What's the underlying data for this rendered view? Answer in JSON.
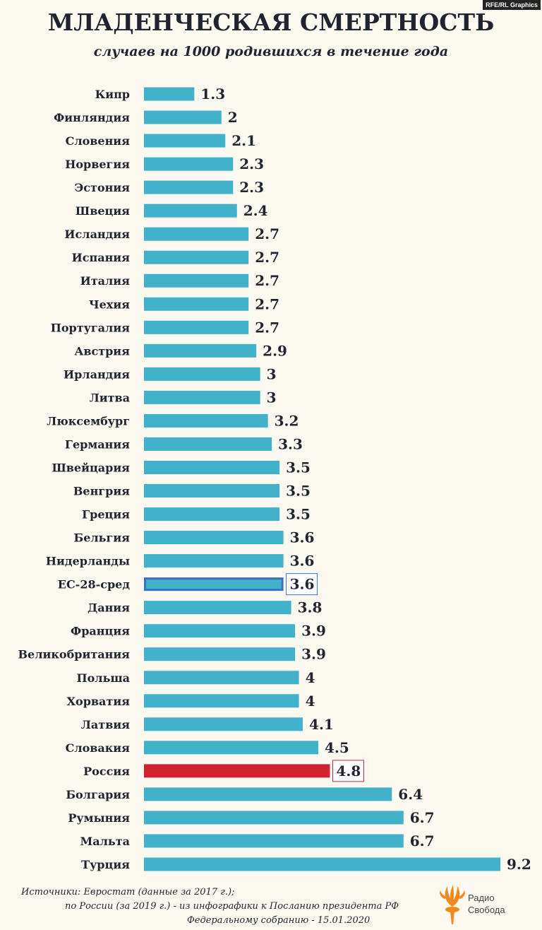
{
  "credit": "RFE/RL Graphics",
  "title": "МЛАДЕНЧЕСКАЯ СМЕРТНОСТЬ",
  "subtitle": "случаев на 1000 родившихся в течение года",
  "colors": {
    "bar": "#41b2c9",
    "eu_average": "#3a70c8",
    "russia": "#d12231",
    "text": "#1f2430",
    "background": "#fcf9f1"
  },
  "chart_data": {
    "type": "bar",
    "orientation": "horizontal",
    "title": "МЛАДЕНЧЕСКАЯ СМЕРТНОСТЬ",
    "subtitle": "случаев на 1000 родившихся в течение года",
    "categories": [
      "Кипр",
      "Финляндия",
      "Словения",
      "Норвегия",
      "Эстония",
      "Швеция",
      "Исландия",
      "Испания",
      "Италия",
      "Чехия",
      "Португалия",
      "Австрия",
      "Ирландия",
      "Литва",
      "Люксембург",
      "Германия",
      "Швейцария",
      "Венгрия",
      "Греция",
      "Бельгия",
      "Нидерланды",
      "ЕС-28-сред",
      "Дания",
      "Франция",
      "Великобритания",
      "Польша",
      "Хорватия",
      "Латвия",
      "Словакия",
      "Россия",
      "Болгария",
      "Румыния",
      "Мальта",
      "Турция"
    ],
    "values": [
      1.3,
      2,
      2.1,
      2.3,
      2.3,
      2.4,
      2.7,
      2.7,
      2.7,
      2.7,
      2.7,
      2.9,
      3,
      3,
      3.2,
      3.3,
      3.5,
      3.5,
      3.5,
      3.6,
      3.6,
      3.6,
      3.8,
      3.9,
      3.9,
      4,
      4,
      4.1,
      4.5,
      4.8,
      6.4,
      6.7,
      6.7,
      9.2
    ],
    "value_labels": [
      "1.3",
      "2",
      "2.1",
      "2.3",
      "2.3",
      "2.4",
      "2.7",
      "2.7",
      "2.7",
      "2.7",
      "2.7",
      "2.9",
      "3",
      "3",
      "3.2",
      "3.3",
      "3.5",
      "3.5",
      "3.5",
      "3.6",
      "3.6",
      "3.6",
      "3.8",
      "3.9",
      "3.9",
      "4",
      "4",
      "4.1",
      "4.5",
      "4.8",
      "6.4",
      "6.7",
      "6.7",
      "9.2"
    ],
    "highlights": {
      "ЕС-28-сред": "eu_average",
      "Россия": "russia"
    },
    "xlim": [
      0,
      9.2
    ],
    "grid": false,
    "legend": "none"
  },
  "footer": {
    "line1": "Источники: Евростат (данные за 2017 г.);",
    "line2": "по России (за 2019 г.) - из инфографики к Посланию президента РФ",
    "line3": "Федеральному собранию - 15.01.2020"
  },
  "logo": {
    "line1": "Радио",
    "line2": "Свобода"
  }
}
